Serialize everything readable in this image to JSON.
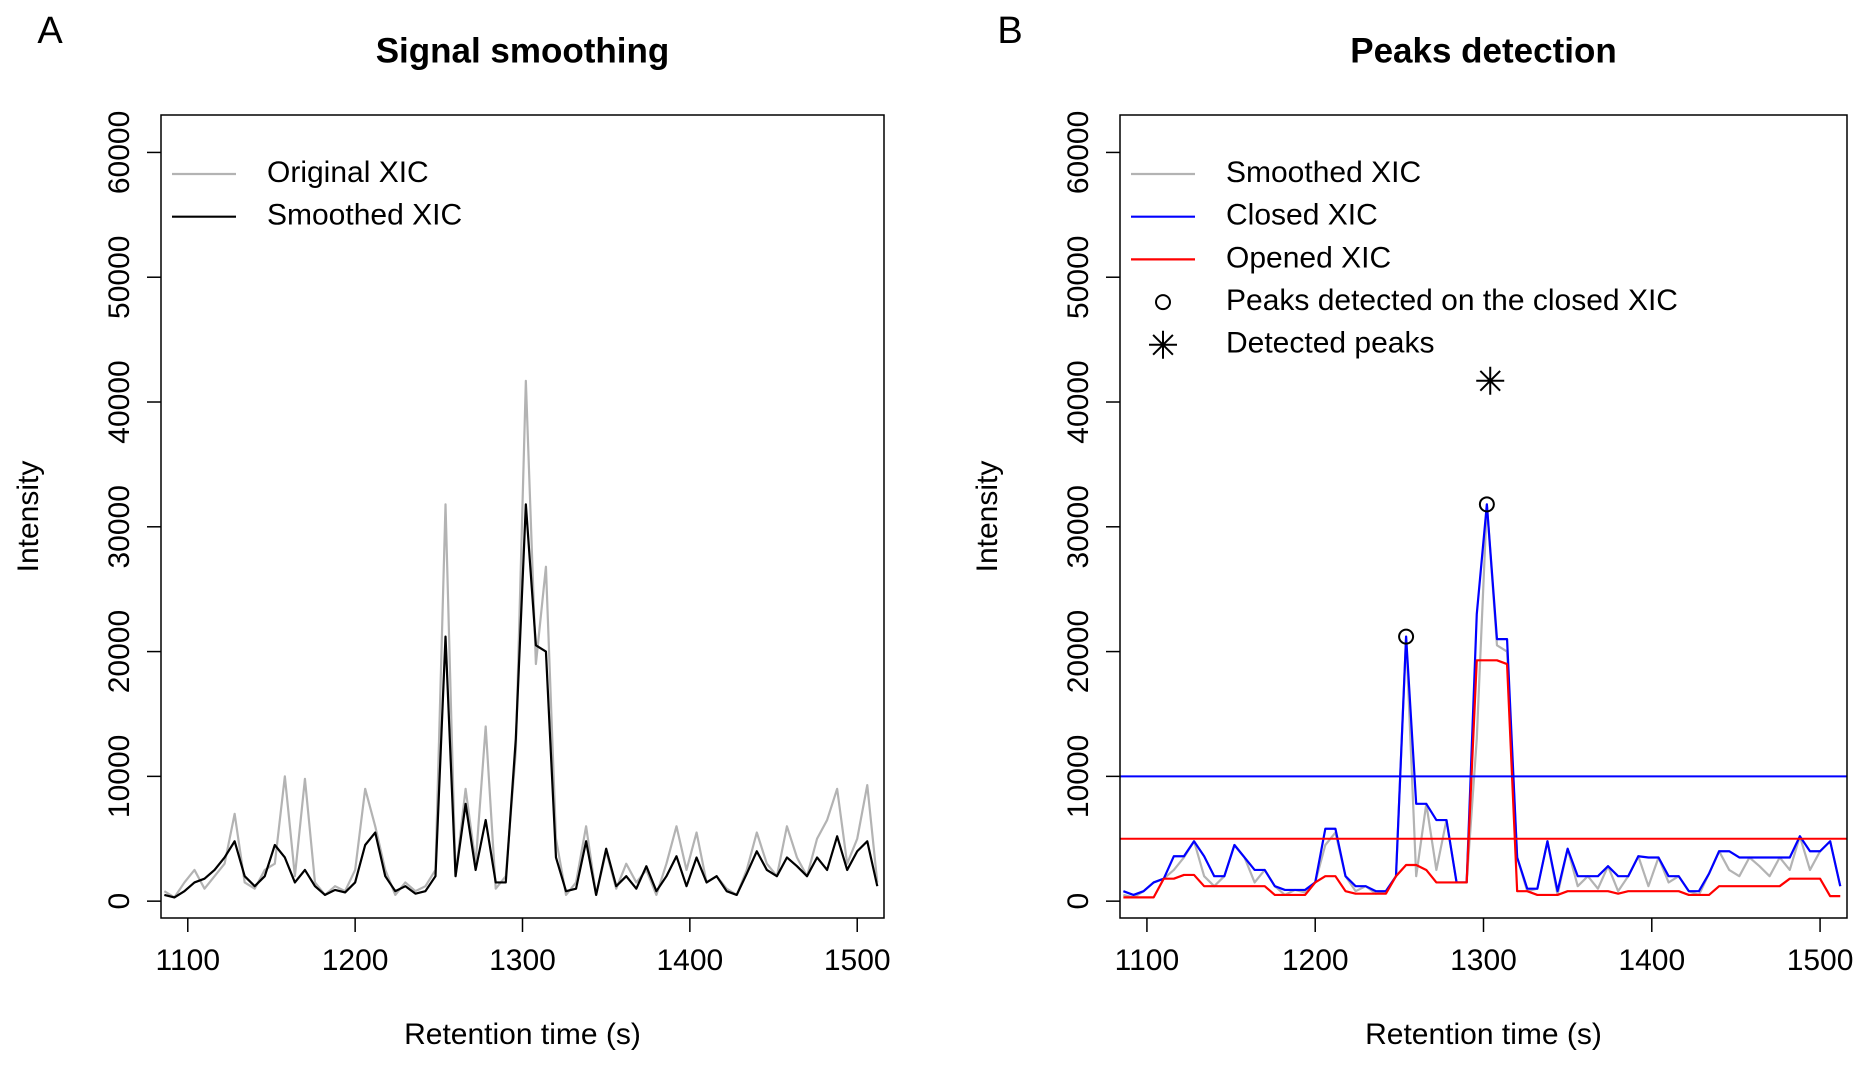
{
  "chart_data": [
    {
      "type": "line",
      "panel_label": "A",
      "title": "Signal smoothing",
      "x_label": "Retention time (s)",
      "y_label": "Intensity",
      "xlim": [
        1084,
        1516
      ],
      "ylim": [
        -1350,
        63000
      ],
      "xticks": [
        1100,
        1200,
        1300,
        1400,
        1500
      ],
      "yticks": [
        0,
        10000,
        20000,
        30000,
        40000,
        50000,
        60000
      ],
      "x": [
        1086,
        1092,
        1098,
        1104,
        1110,
        1116,
        1122,
        1128,
        1134,
        1140,
        1146,
        1152,
        1158,
        1164,
        1170,
        1176,
        1182,
        1188,
        1194,
        1200,
        1206,
        1212,
        1218,
        1224,
        1230,
        1236,
        1242,
        1248,
        1254,
        1260,
        1266,
        1272,
        1278,
        1284,
        1290,
        1296,
        1302,
        1308,
        1314,
        1320,
        1326,
        1332,
        1338,
        1344,
        1350,
        1356,
        1362,
        1368,
        1374,
        1380,
        1386,
        1392,
        1398,
        1404,
        1410,
        1416,
        1422,
        1428,
        1434,
        1440,
        1446,
        1452,
        1458,
        1464,
        1470,
        1476,
        1482,
        1488,
        1494,
        1500,
        1506,
        1512
      ],
      "series": [
        {
          "name": "Original XIC",
          "color": "#b3b3b3",
          "values": [
            800,
            300,
            1500,
            2500,
            1000,
            2000,
            3000,
            7000,
            1500,
            1000,
            2500,
            3000,
            10000,
            2000,
            9800,
            1500,
            500,
            1200,
            800,
            2500,
            9000,
            6000,
            2500,
            500,
            1500,
            800,
            1200,
            2500,
            31800,
            2000,
            9000,
            3000,
            14000,
            1000,
            2000,
            12000,
            41700,
            19000,
            26800,
            5000,
            500,
            1500,
            6000,
            500,
            4000,
            1000,
            3000,
            1500,
            2500,
            500,
            3000,
            6000,
            2500,
            5500,
            1500,
            2000,
            1000,
            500,
            2500,
            5500,
            3000,
            2000,
            6000,
            3500,
            2000,
            5000,
            6500,
            9000,
            3000,
            5000,
            9300,
            1500
          ]
        },
        {
          "name": "Smoothed XIC",
          "color": "#000000",
          "values": [
            500,
            300,
            800,
            1500,
            1800,
            2500,
            3500,
            4800,
            2000,
            1200,
            2000,
            4500,
            3500,
            1500,
            2500,
            1200,
            500,
            900,
            700,
            1500,
            4500,
            5500,
            2000,
            800,
            1200,
            600,
            800,
            2000,
            21200,
            2000,
            7800,
            2500,
            6500,
            1500,
            1500,
            13000,
            31800,
            20500,
            20000,
            3500,
            800,
            1000,
            4800,
            500,
            4200,
            1200,
            2000,
            1000,
            2800,
            800,
            2000,
            3600,
            1200,
            3500,
            1500,
            2000,
            800,
            500,
            2200,
            4000,
            2500,
            2000,
            3500,
            2800,
            2000,
            3500,
            2500,
            5200,
            2500,
            4000,
            4800,
            1200
          ]
        }
      ]
    },
    {
      "type": "line",
      "panel_label": "B",
      "title": "Peaks detection",
      "x_label": "Retention time (s)",
      "y_label": "Intensity",
      "xlim": [
        1084,
        1516
      ],
      "ylim": [
        -1350,
        63000
      ],
      "xticks": [
        1100,
        1200,
        1300,
        1400,
        1500
      ],
      "yticks": [
        0,
        10000,
        20000,
        30000,
        40000,
        50000,
        60000
      ],
      "x": [
        1086,
        1092,
        1098,
        1104,
        1110,
        1116,
        1122,
        1128,
        1134,
        1140,
        1146,
        1152,
        1158,
        1164,
        1170,
        1176,
        1182,
        1188,
        1194,
        1200,
        1206,
        1212,
        1218,
        1224,
        1230,
        1236,
        1242,
        1248,
        1254,
        1260,
        1266,
        1272,
        1278,
        1284,
        1290,
        1296,
        1302,
        1308,
        1314,
        1320,
        1326,
        1332,
        1338,
        1344,
        1350,
        1356,
        1362,
        1368,
        1374,
        1380,
        1386,
        1392,
        1398,
        1404,
        1410,
        1416,
        1422,
        1428,
        1434,
        1440,
        1446,
        1452,
        1458,
        1464,
        1470,
        1476,
        1482,
        1488,
        1494,
        1500,
        1506,
        1512
      ],
      "hlines": [
        {
          "value": 10000,
          "color": "#0000ff"
        },
        {
          "value": 5000,
          "color": "#ff0000"
        }
      ],
      "series": [
        {
          "name": "Smoothed XIC",
          "color": "#b3b3b3",
          "values": [
            500,
            300,
            800,
            1500,
            1800,
            2500,
            3500,
            4800,
            2000,
            1200,
            2000,
            4500,
            3500,
            1500,
            2500,
            1200,
            500,
            900,
            700,
            1500,
            4500,
            5500,
            2000,
            800,
            1200,
            600,
            800,
            2000,
            21200,
            2000,
            7800,
            2500,
            6500,
            1500,
            1500,
            13000,
            31800,
            20500,
            20000,
            3500,
            800,
            1000,
            4800,
            500,
            4200,
            1200,
            2000,
            1000,
            2800,
            800,
            2000,
            3600,
            1200,
            3500,
            1500,
            2000,
            800,
            500,
            2200,
            4000,
            2500,
            2000,
            3500,
            2800,
            2000,
            3500,
            2500,
            5200,
            2500,
            4000,
            4800,
            1200
          ]
        },
        {
          "name": "Closed XIC",
          "color": "#0000ff",
          "values": [
            800,
            500,
            800,
            1500,
            1800,
            3600,
            3600,
            4800,
            3600,
            2000,
            2000,
            4500,
            3500,
            2500,
            2500,
            1200,
            900,
            900,
            900,
            1500,
            5800,
            5800,
            2000,
            1200,
            1200,
            800,
            800,
            2000,
            21200,
            7800,
            7800,
            6500,
            6500,
            1500,
            1500,
            23000,
            31800,
            21000,
            21000,
            3500,
            1000,
            1000,
            4800,
            800,
            4200,
            2000,
            2000,
            2000,
            2800,
            2000,
            2000,
            3600,
            3500,
            3500,
            2000,
            2000,
            800,
            800,
            2200,
            4000,
            4000,
            3500,
            3500,
            3500,
            3500,
            3500,
            3500,
            5200,
            4000,
            4000,
            4800,
            1200
          ]
        },
        {
          "name": "Opened XIC",
          "color": "#ff0000",
          "values": [
            300,
            300,
            300,
            300,
            1800,
            1800,
            2100,
            2100,
            1200,
            1200,
            1200,
            1200,
            1200,
            1200,
            1200,
            500,
            500,
            500,
            500,
            1500,
            2000,
            2000,
            800,
            600,
            600,
            600,
            600,
            2000,
            2900,
            2900,
            2500,
            1500,
            1500,
            1500,
            1500,
            19300,
            19300,
            19300,
            19000,
            800,
            800,
            500,
            500,
            500,
            800,
            800,
            800,
            800,
            800,
            600,
            800,
            800,
            800,
            800,
            800,
            800,
            500,
            500,
            500,
            1200,
            1200,
            1200,
            1200,
            1200,
            1200,
            1200,
            1800,
            1800,
            1800,
            1800,
            400,
            400
          ]
        },
        {
          "name": "Peaks detected on the closed XIC",
          "color": "#000000",
          "marker": "circle",
          "x": [
            1254,
            1302
          ],
          "values": [
            21200,
            31800
          ]
        },
        {
          "name": "Detected peaks",
          "color": "#000000",
          "marker": "asterisk",
          "x": [
            1304
          ],
          "values": [
            41700
          ]
        }
      ]
    }
  ]
}
